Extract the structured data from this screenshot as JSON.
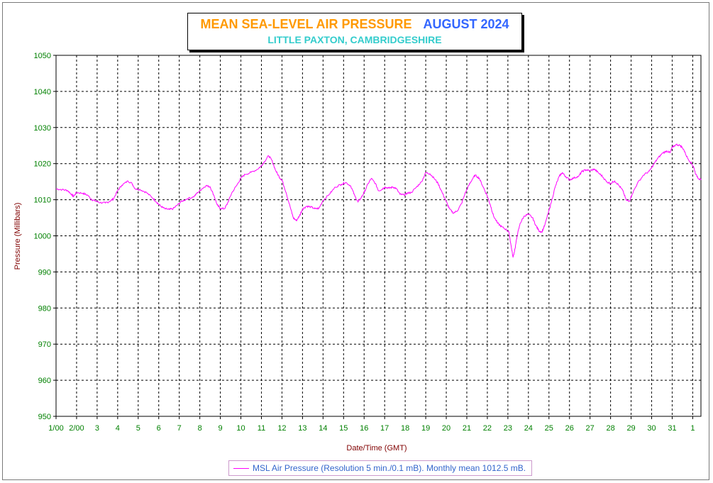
{
  "title": {
    "main": "MEAN SEA-LEVEL AIR PRESSURE",
    "month": "AUGUST 2024",
    "subtitle": "LITTLE PAXTON, CAMBRIDGESHIRE"
  },
  "legend": {
    "label": "MSL Air Pressure (Resolution 5 min./0.1 mB). Monthly mean 1012.5 mB."
  },
  "colors": {
    "series": "#ff00ff",
    "ticks": "#008000",
    "axis_label": "#800000",
    "title_main": "#ff9900",
    "title_month": "#3366ff",
    "subtitle": "#33cccc"
  },
  "chart_data": {
    "type": "line",
    "title": "MEAN SEA-LEVEL AIR PRESSURE AUGUST 2024",
    "subtitle": "LITTLE PAXTON, CAMBRIDGESHIRE",
    "xlabel": "Date/Time (GMT)",
    "ylabel": "Pressure (Millibars)",
    "xlim": [
      1,
      32.4
    ],
    "ylim": [
      950,
      1050
    ],
    "grid": true,
    "legend_position": "bottom",
    "x_ticks": [
      {
        "x": 1,
        "label": "1/00"
      },
      {
        "x": 2,
        "label": "2/00"
      },
      {
        "x": 3,
        "label": "3"
      },
      {
        "x": 4,
        "label": "4"
      },
      {
        "x": 5,
        "label": "5"
      },
      {
        "x": 6,
        "label": "6"
      },
      {
        "x": 7,
        "label": "7"
      },
      {
        "x": 8,
        "label": "8"
      },
      {
        "x": 9,
        "label": "9"
      },
      {
        "x": 10,
        "label": "10"
      },
      {
        "x": 11,
        "label": "11"
      },
      {
        "x": 12,
        "label": "12"
      },
      {
        "x": 13,
        "label": "13"
      },
      {
        "x": 14,
        "label": "14"
      },
      {
        "x": 15,
        "label": "15"
      },
      {
        "x": 16,
        "label": "16"
      },
      {
        "x": 17,
        "label": "17"
      },
      {
        "x": 18,
        "label": "18"
      },
      {
        "x": 19,
        "label": "19"
      },
      {
        "x": 20,
        "label": "20"
      },
      {
        "x": 21,
        "label": "21"
      },
      {
        "x": 22,
        "label": "22"
      },
      {
        "x": 23,
        "label": "23"
      },
      {
        "x": 24,
        "label": "24"
      },
      {
        "x": 25,
        "label": "25"
      },
      {
        "x": 26,
        "label": "26"
      },
      {
        "x": 27,
        "label": "27"
      },
      {
        "x": 28,
        "label": "28"
      },
      {
        "x": 29,
        "label": "29"
      },
      {
        "x": 30,
        "label": "30"
      },
      {
        "x": 31,
        "label": "31"
      },
      {
        "x": 32,
        "label": "1"
      }
    ],
    "y_ticks": [
      950,
      960,
      970,
      980,
      990,
      1000,
      1010,
      1020,
      1030,
      1040,
      1050
    ],
    "series": [
      {
        "name": "MSL Air Pressure (Resolution 5 min./0.1 mB). Monthly mean 1012.5 mB.",
        "points": [
          [
            1.0,
            1013.0
          ],
          [
            1.3,
            1012.8
          ],
          [
            1.55,
            1012.6
          ],
          [
            1.75,
            1011.5
          ],
          [
            1.85,
            1010.9
          ],
          [
            2.0,
            1012.0
          ],
          [
            2.3,
            1011.8
          ],
          [
            2.55,
            1011.2
          ],
          [
            2.75,
            1010.0
          ],
          [
            2.95,
            1009.6
          ],
          [
            3.15,
            1009.2
          ],
          [
            3.4,
            1009.1
          ],
          [
            3.6,
            1009.5
          ],
          [
            3.8,
            1010.3
          ],
          [
            4.0,
            1012.5
          ],
          [
            4.2,
            1014.0
          ],
          [
            4.5,
            1015.2
          ],
          [
            4.7,
            1014.5
          ],
          [
            4.85,
            1013.0
          ],
          [
            5.1,
            1012.8
          ],
          [
            5.4,
            1012.0
          ],
          [
            5.7,
            1010.5
          ],
          [
            5.9,
            1009.3
          ],
          [
            6.1,
            1008.2
          ],
          [
            6.3,
            1007.5
          ],
          [
            6.5,
            1007.3
          ],
          [
            6.7,
            1007.5
          ],
          [
            6.9,
            1008.5
          ],
          [
            7.1,
            1009.5
          ],
          [
            7.4,
            1010.3
          ],
          [
            7.7,
            1010.8
          ],
          [
            7.9,
            1012.0
          ],
          [
            8.1,
            1013.0
          ],
          [
            8.3,
            1013.9
          ],
          [
            8.5,
            1013.6
          ],
          [
            8.7,
            1011.0
          ],
          [
            8.85,
            1008.5
          ],
          [
            9.0,
            1007.6
          ],
          [
            9.2,
            1007.5
          ],
          [
            9.35,
            1009.0
          ],
          [
            9.55,
            1011.8
          ],
          [
            9.8,
            1014.0
          ],
          [
            10.0,
            1016.0
          ],
          [
            10.2,
            1017.0
          ],
          [
            10.5,
            1017.6
          ],
          [
            10.8,
            1018.4
          ],
          [
            11.0,
            1019.4
          ],
          [
            11.15,
            1020.6
          ],
          [
            11.35,
            1022.2
          ],
          [
            11.5,
            1021.0
          ],
          [
            11.7,
            1018.0
          ],
          [
            11.9,
            1016.0
          ],
          [
            12.0,
            1015.5
          ],
          [
            12.2,
            1012.0
          ],
          [
            12.4,
            1008.0
          ],
          [
            12.55,
            1005.0
          ],
          [
            12.7,
            1004.2
          ],
          [
            12.85,
            1005.5
          ],
          [
            13.0,
            1007.4
          ],
          [
            13.2,
            1008.2
          ],
          [
            13.4,
            1008.0
          ],
          [
            13.6,
            1007.5
          ],
          [
            13.8,
            1007.6
          ],
          [
            14.0,
            1009.8
          ],
          [
            14.3,
            1011.5
          ],
          [
            14.6,
            1013.5
          ],
          [
            14.9,
            1014.3
          ],
          [
            15.1,
            1014.8
          ],
          [
            15.35,
            1013.8
          ],
          [
            15.55,
            1011.0
          ],
          [
            15.7,
            1009.4
          ],
          [
            15.85,
            1010.5
          ],
          [
            16.0,
            1012.0
          ],
          [
            16.2,
            1014.5
          ],
          [
            16.35,
            1015.9
          ],
          [
            16.55,
            1014.5
          ],
          [
            16.7,
            1012.5
          ],
          [
            16.85,
            1012.8
          ],
          [
            17.0,
            1013.5
          ],
          [
            17.2,
            1013.2
          ],
          [
            17.4,
            1013.5
          ],
          [
            17.55,
            1013.2
          ],
          [
            17.75,
            1011.5
          ],
          [
            17.95,
            1011.3
          ],
          [
            18.1,
            1011.8
          ],
          [
            18.3,
            1012.0
          ],
          [
            18.55,
            1013.5
          ],
          [
            18.8,
            1015.0
          ],
          [
            19.0,
            1017.5
          ],
          [
            19.2,
            1017.2
          ],
          [
            19.4,
            1016.0
          ],
          [
            19.6,
            1014.5
          ],
          [
            19.8,
            1012.0
          ],
          [
            20.0,
            1009.5
          ],
          [
            20.15,
            1007.5
          ],
          [
            20.35,
            1006.3
          ],
          [
            20.55,
            1007.0
          ],
          [
            20.75,
            1009.0
          ],
          [
            20.9,
            1011.5
          ],
          [
            21.1,
            1014.0
          ],
          [
            21.25,
            1015.5
          ],
          [
            21.4,
            1016.8
          ],
          [
            21.6,
            1016.0
          ],
          [
            21.8,
            1013.5
          ],
          [
            22.0,
            1011.0
          ],
          [
            22.15,
            1008.5
          ],
          [
            22.3,
            1005.5
          ],
          [
            22.5,
            1003.5
          ],
          [
            22.7,
            1002.5
          ],
          [
            22.9,
            1001.8
          ],
          [
            23.05,
            1001.0
          ],
          [
            23.15,
            997.5
          ],
          [
            23.25,
            994.0
          ],
          [
            23.35,
            996.5
          ],
          [
            23.45,
            1000.0
          ],
          [
            23.6,
            1003.5
          ],
          [
            23.8,
            1005.5
          ],
          [
            24.0,
            1006.0
          ],
          [
            24.2,
            1005.0
          ],
          [
            24.35,
            1003.0
          ],
          [
            24.5,
            1001.5
          ],
          [
            24.65,
            1001.0
          ],
          [
            24.8,
            1003.0
          ],
          [
            24.95,
            1006.0
          ],
          [
            25.1,
            1009.0
          ],
          [
            25.3,
            1013.5
          ],
          [
            25.5,
            1016.5
          ],
          [
            25.65,
            1017.5
          ],
          [
            25.8,
            1016.5
          ],
          [
            26.0,
            1015.5
          ],
          [
            26.2,
            1016.0
          ],
          [
            26.45,
            1016.5
          ],
          [
            26.6,
            1017.8
          ],
          [
            26.8,
            1018.3
          ],
          [
            27.0,
            1018.0
          ],
          [
            27.2,
            1018.5
          ],
          [
            27.4,
            1017.5
          ],
          [
            27.6,
            1016.5
          ],
          [
            27.8,
            1015.0
          ],
          [
            28.0,
            1014.5
          ],
          [
            28.2,
            1015.2
          ],
          [
            28.4,
            1014.0
          ],
          [
            28.6,
            1012.5
          ],
          [
            28.75,
            1010.0
          ],
          [
            28.9,
            1009.5
          ],
          [
            29.05,
            1011.5
          ],
          [
            29.3,
            1014.5
          ],
          [
            29.6,
            1016.8
          ],
          [
            29.9,
            1018.0
          ],
          [
            30.1,
            1019.8
          ],
          [
            30.3,
            1021.5
          ],
          [
            30.55,
            1023.0
          ],
          [
            30.75,
            1023.5
          ],
          [
            30.9,
            1023.0
          ],
          [
            31.0,
            1024.5
          ],
          [
            31.2,
            1025.3
          ],
          [
            31.4,
            1025.0
          ],
          [
            31.55,
            1024.0
          ],
          [
            31.75,
            1021.5
          ],
          [
            31.95,
            1020.0
          ],
          [
            32.05,
            1019.0
          ],
          [
            32.15,
            1017.0
          ],
          [
            32.3,
            1015.8
          ],
          [
            32.4,
            1015.5
          ]
        ]
      }
    ]
  }
}
